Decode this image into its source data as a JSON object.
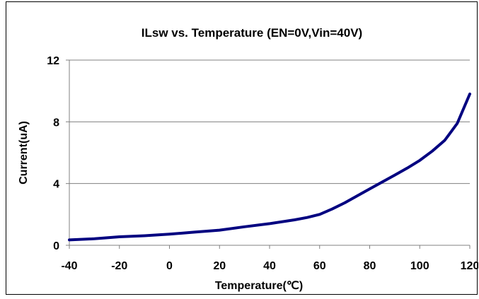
{
  "chart_data": {
    "type": "line",
    "title": "ILsw vs. Temperature (EN=0V,Vin=40V)",
    "xlabel": "Temperature(℃)",
    "ylabel": "Current(uA)",
    "xlim": [
      -40,
      120
    ],
    "ylim": [
      0,
      12
    ],
    "x_ticks": [
      "-40",
      "-20",
      "0",
      "20",
      "40",
      "60",
      "80",
      "100",
      "120"
    ],
    "y_ticks": [
      "0",
      "4",
      "8",
      "12"
    ],
    "grid": "horizontal",
    "legend": "none",
    "series": [
      {
        "color": "#000080",
        "x": [
          -40,
          -30,
          -20,
          -10,
          0,
          10,
          20,
          30,
          40,
          50,
          55,
          60,
          65,
          70,
          75,
          80,
          85,
          90,
          95,
          100,
          105,
          110,
          115,
          120
        ],
        "y": [
          0.35,
          0.42,
          0.55,
          0.62,
          0.72,
          0.85,
          0.98,
          1.2,
          1.4,
          1.65,
          1.8,
          2.0,
          2.35,
          2.75,
          3.2,
          3.65,
          4.1,
          4.55,
          5.0,
          5.5,
          6.1,
          6.8,
          7.9,
          9.8
        ]
      }
    ]
  }
}
